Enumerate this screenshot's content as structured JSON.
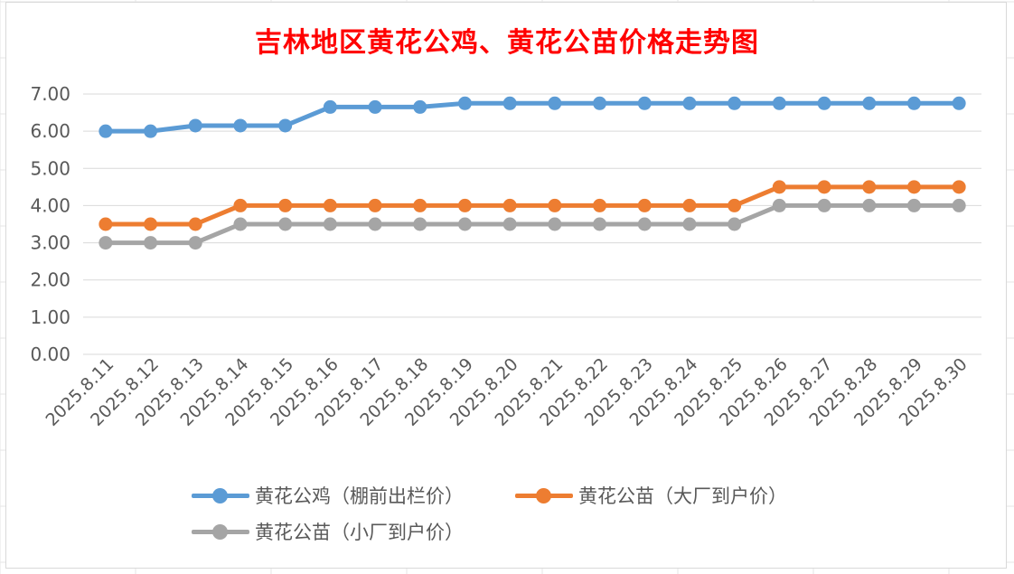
{
  "chart_data": {
    "type": "line",
    "title": "吉林地区黄花公鸡、黄花公苗价格走势图",
    "title_color": "#ff0000",
    "categories": [
      "2025.8.11",
      "2025.8.12",
      "2025.8.13",
      "2025.8.14",
      "2025.8.15",
      "2025.8.16",
      "2025.8.17",
      "2025.8.18",
      "2025.8.19",
      "2025.8.20",
      "2025.8.21",
      "2025.8.22",
      "2025.8.23",
      "2025.8.24",
      "2025.8.25",
      "2025.8.26",
      "2025.8.27",
      "2025.8.28",
      "2025.8.29",
      "2025.8.30"
    ],
    "y_ticks": [
      "0.00",
      "1.00",
      "2.00",
      "3.00",
      "4.00",
      "5.00",
      "6.00",
      "7.00"
    ],
    "ylim": [
      0,
      7
    ],
    "grid": true,
    "legend_position": "bottom",
    "series": [
      {
        "name": "黄花公鸡（棚前出栏价）",
        "color": "#5b9bd5",
        "values": [
          6.0,
          6.0,
          6.15,
          6.15,
          6.15,
          6.65,
          6.65,
          6.65,
          6.75,
          6.75,
          6.75,
          6.75,
          6.75,
          6.75,
          6.75,
          6.75,
          6.75,
          6.75,
          6.75,
          6.75
        ]
      },
      {
        "name": "黄花公苗（大厂到户价）",
        "color": "#ed7d31",
        "values": [
          3.5,
          3.5,
          3.5,
          4.0,
          4.0,
          4.0,
          4.0,
          4.0,
          4.0,
          4.0,
          4.0,
          4.0,
          4.0,
          4.0,
          4.0,
          4.5,
          4.5,
          4.5,
          4.5,
          4.5
        ]
      },
      {
        "name": "黄花公苗（小厂到户价）",
        "color": "#a5a5a5",
        "values": [
          3.0,
          3.0,
          3.0,
          3.5,
          3.5,
          3.5,
          3.5,
          3.5,
          3.5,
          3.5,
          3.5,
          3.5,
          3.5,
          3.5,
          3.5,
          4.0,
          4.0,
          4.0,
          4.0,
          4.0
        ]
      }
    ]
  }
}
